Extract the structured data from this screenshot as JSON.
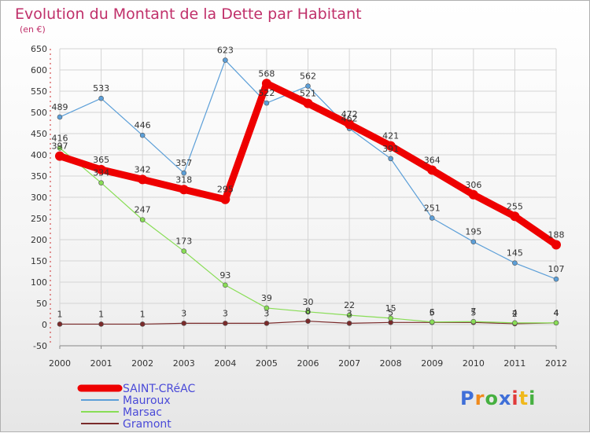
{
  "chart_data": {
    "type": "line",
    "title": "Evolution du Montant de la Dette par Habitant",
    "subtitle": "(en €)",
    "categories": [
      "2000",
      "2001",
      "2002",
      "2003",
      "2004",
      "2005",
      "2006",
      "2007",
      "2008",
      "2009",
      "2010",
      "2011",
      "2012"
    ],
    "ylim": [
      -50,
      650
    ],
    "yticks": [
      -50,
      0,
      50,
      100,
      150,
      200,
      250,
      300,
      350,
      400,
      450,
      500,
      550,
      600,
      650
    ],
    "grid": true,
    "legend_position": "bottom-left",
    "series": [
      {
        "name": "SAINT-CRéAC",
        "color": "#ee0000",
        "values": [
          397,
          365,
          342,
          318,
          295,
          568,
          521,
          472,
          421,
          364,
          306,
          255,
          188
        ],
        "labels": [
          "397",
          "365",
          "342",
          "318",
          "295",
          "568",
          "521",
          "472",
          "421",
          "364",
          "306",
          "255",
          "188"
        ]
      },
      {
        "name": "Mauroux",
        "color": "#5c9fd8",
        "values": [
          489,
          533,
          446,
          357,
          623,
          522,
          562,
          462,
          391,
          251,
          195,
          145,
          107
        ],
        "labels": [
          "489",
          "533",
          "446",
          "357",
          "623",
          "522",
          "562",
          "462",
          "391",
          "251",
          "195",
          "145",
          "107"
        ]
      },
      {
        "name": "Marsac",
        "color": "#88dd55",
        "values": [
          416,
          334,
          247,
          173,
          93,
          39,
          30,
          22,
          15,
          6,
          7,
          4,
          4
        ],
        "labels": [
          "416",
          "334",
          "247",
          "173",
          "93",
          "39",
          "30",
          "22",
          "15",
          "6",
          "7",
          "4",
          "4"
        ]
      },
      {
        "name": "Gramont",
        "color": "#7a2a2a",
        "values": [
          1,
          1,
          1,
          3,
          3,
          3,
          8,
          3,
          5,
          5,
          5,
          2,
          4
        ],
        "labels": [
          "1",
          "1",
          "1",
          "3",
          "3",
          "3",
          "8",
          "3",
          "5",
          "5",
          "5",
          "2",
          "4"
        ]
      }
    ]
  },
  "logo": {
    "letters": [
      "P",
      "r",
      "o",
      "x",
      "i",
      "t",
      "i"
    ],
    "colors": [
      "#3f6fd8",
      "#f08a1c",
      "#46b040",
      "#3f6fd8",
      "#e03a3a",
      "#f0b81c",
      "#46b040"
    ]
  }
}
